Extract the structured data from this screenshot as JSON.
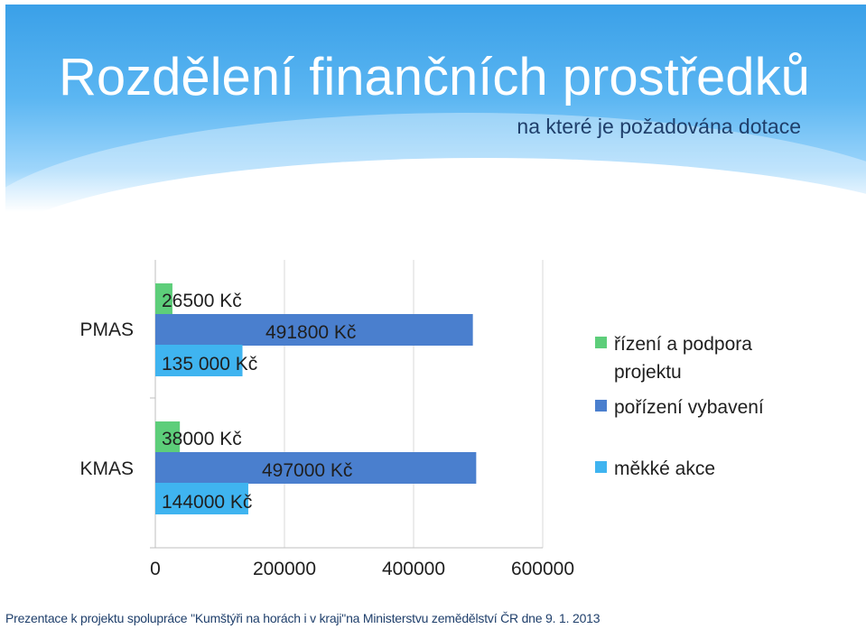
{
  "slide": {
    "title": "Rozdělení finančních prostředků",
    "subtitle": "na které je požadována dotace",
    "footer": "Prezentace k projektu spolupráce \"Kumštýři na horách i v kraji\"na Ministerstvu zemědělství ČR dne 9. 1. 2013"
  },
  "chart_data": {
    "type": "bar",
    "orientation": "horizontal",
    "categories": [
      "PMAS",
      "KMAS"
    ],
    "series": [
      {
        "name": "řízení a podpora projektu",
        "color": "#5dce7a",
        "values": [
          26500,
          38000
        ],
        "labels": [
          "26500  Kč",
          "38000 Kč"
        ]
      },
      {
        "name": "pořízení vybavení",
        "color": "#4a7fce",
        "values": [
          491800,
          497000
        ],
        "labels": [
          "491800 Kč",
          "497000  Kč"
        ]
      },
      {
        "name": "měkké akce",
        "color": "#3fb4f0",
        "values": [
          135000,
          144000
        ],
        "labels": [
          "135 000 Kč",
          "144000 Kč"
        ]
      }
    ],
    "xlim": [
      0,
      600000
    ],
    "xticks": [
      "0",
      "200000",
      "400000",
      "600000"
    ],
    "grid": true,
    "legend_position": "right"
  }
}
